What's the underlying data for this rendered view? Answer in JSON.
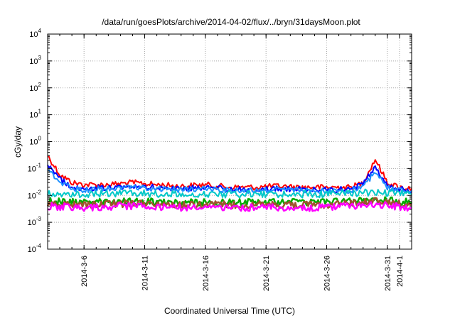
{
  "chart_data": {
    "type": "line",
    "title": "/data/run/goesPlots/archive/2014-04-02/flux/../bryn/31daysMoon.plot",
    "xlabel": "Coordinated Universal Time (UTC)",
    "ylabel": "cGy/day",
    "yscale": "log",
    "ylim": [
      0.0001,
      10000
    ],
    "y_ticks": [
      {
        "base": "10",
        "exp": "-4",
        "value": 0.0001
      },
      {
        "base": "10",
        "exp": "-3",
        "value": 0.001
      },
      {
        "base": "10",
        "exp": "-2",
        "value": 0.01
      },
      {
        "base": "10",
        "exp": "-1",
        "value": 0.1
      },
      {
        "base": "10",
        "exp": "0",
        "value": 1
      },
      {
        "base": "10",
        "exp": "1",
        "value": 10
      },
      {
        "base": "10",
        "exp": "2",
        "value": 100
      },
      {
        "base": "10",
        "exp": "3",
        "value": 1000
      },
      {
        "base": "10",
        "exp": "4",
        "value": 10000
      }
    ],
    "xlim": [
      "2014-03-03T00:00",
      "2014-04-02T00:00"
    ],
    "x_ticks": [
      {
        "label": "2014-3-6",
        "date": "2014-03-06"
      },
      {
        "label": "2014-3-11",
        "date": "2014-03-11"
      },
      {
        "label": "2014-3-16",
        "date": "2014-03-16"
      },
      {
        "label": "2014-3-21",
        "date": "2014-03-21"
      },
      {
        "label": "2014-3-26",
        "date": "2014-03-26"
      },
      {
        "label": "2014-3-31",
        "date": "2014-03-31"
      },
      {
        "label": "2014-4-1",
        "date": "2014-04-01"
      }
    ],
    "grid": true,
    "series": [
      {
        "color": "#ff0000",
        "x": [
          "2014-03-03",
          "2014-03-04",
          "2014-03-05",
          "2014-03-06",
          "2014-03-08",
          "2014-03-10",
          "2014-03-12",
          "2014-03-14",
          "2014-03-16",
          "2014-03-18",
          "2014-03-20",
          "2014-03-22",
          "2014-03-24",
          "2014-03-26",
          "2014-03-28",
          "2014-03-29",
          "2014-03-30",
          "2014-03-31",
          "2014-04-01",
          "2014-04-02"
        ],
        "values": [
          0.3,
          0.06,
          0.03,
          0.025,
          0.025,
          0.03,
          0.025,
          0.022,
          0.025,
          0.02,
          0.02,
          0.022,
          0.02,
          0.02,
          0.02,
          0.03,
          0.22,
          0.03,
          0.02,
          0.018
        ]
      },
      {
        "color": "#0000ff",
        "x": [
          "2014-03-03",
          "2014-03-04",
          "2014-03-05",
          "2014-03-06",
          "2014-03-08",
          "2014-03-10",
          "2014-03-12",
          "2014-03-14",
          "2014-03-16",
          "2014-03-18",
          "2014-03-20",
          "2014-03-22",
          "2014-03-24",
          "2014-03-26",
          "2014-03-28",
          "2014-03-29",
          "2014-03-30",
          "2014-03-31",
          "2014-04-01",
          "2014-04-02"
        ],
        "values": [
          0.15,
          0.04,
          0.02,
          0.018,
          0.02,
          0.022,
          0.02,
          0.018,
          0.02,
          0.017,
          0.016,
          0.018,
          0.017,
          0.016,
          0.017,
          0.025,
          0.12,
          0.025,
          0.017,
          0.015
        ]
      },
      {
        "color": "#1e90ff",
        "x": [
          "2014-03-03",
          "2014-03-04",
          "2014-03-05",
          "2014-03-06",
          "2014-03-08",
          "2014-03-10",
          "2014-03-12",
          "2014-03-14",
          "2014-03-16",
          "2014-03-18",
          "2014-03-20",
          "2014-03-22",
          "2014-03-24",
          "2014-03-26",
          "2014-03-28",
          "2014-03-29",
          "2014-03-30",
          "2014-03-31",
          "2014-04-01",
          "2014-04-02"
        ],
        "values": [
          0.1,
          0.03,
          0.018,
          0.016,
          0.018,
          0.02,
          0.018,
          0.016,
          0.018,
          0.015,
          0.015,
          0.016,
          0.015,
          0.015,
          0.015,
          0.02,
          0.08,
          0.02,
          0.015,
          0.014
        ]
      },
      {
        "color": "#00c8c8",
        "x": [
          "2014-03-03",
          "2014-03-06",
          "2014-03-10",
          "2014-03-14",
          "2014-03-18",
          "2014-03-22",
          "2014-03-26",
          "2014-03-30",
          "2014-04-02"
        ],
        "values": [
          0.012,
          0.011,
          0.012,
          0.011,
          0.011,
          0.011,
          0.011,
          0.013,
          0.011
        ]
      },
      {
        "color": "#00aa00",
        "x": [
          "2014-03-03",
          "2014-03-06",
          "2014-03-10",
          "2014-03-14",
          "2014-03-18",
          "2014-03-22",
          "2014-03-26",
          "2014-03-30",
          "2014-04-02"
        ],
        "values": [
          0.006,
          0.0055,
          0.006,
          0.0055,
          0.0055,
          0.0055,
          0.0055,
          0.007,
          0.0055
        ]
      },
      {
        "color": "#a0522d",
        "x": [
          "2014-03-03",
          "2014-03-06",
          "2014-03-10",
          "2014-03-14",
          "2014-03-18",
          "2014-03-22",
          "2014-03-26",
          "2014-03-30",
          "2014-04-02"
        ],
        "values": [
          0.005,
          0.0045,
          0.005,
          0.0045,
          0.0045,
          0.0045,
          0.0045,
          0.006,
          0.0045
        ]
      },
      {
        "color": "#ff00ff",
        "x": [
          "2014-03-03",
          "2014-03-06",
          "2014-03-10",
          "2014-03-14",
          "2014-03-18",
          "2014-03-22",
          "2014-03-26",
          "2014-03-30",
          "2014-04-02"
        ],
        "values": [
          0.004,
          0.0035,
          0.004,
          0.0035,
          0.0035,
          0.0035,
          0.0035,
          0.0045,
          0.0035
        ]
      }
    ]
  }
}
